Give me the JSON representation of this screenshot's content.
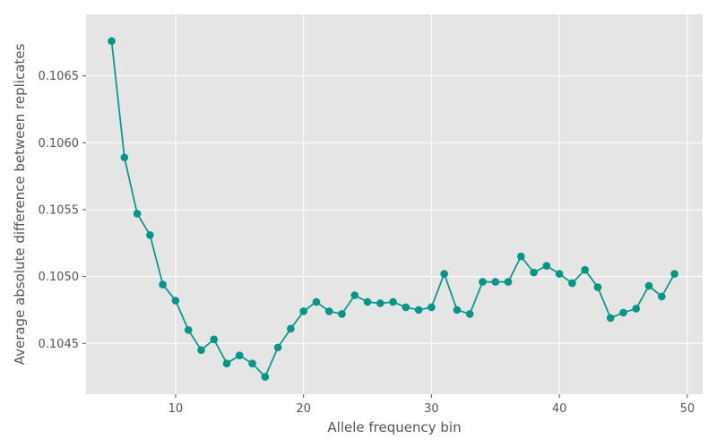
{
  "chart_data": {
    "type": "line",
    "title": "",
    "xlabel": "Allele frequency bin",
    "ylabel": "Average absolute difference between replicates",
    "xlim": [
      3,
      51.2
    ],
    "ylim": [
      0.10412,
      0.10696
    ],
    "xticks": [
      10,
      20,
      30,
      40,
      50
    ],
    "yticks": [
      0.1045,
      0.105,
      0.1055,
      0.106,
      0.1065
    ],
    "xtick_labels": [
      "10",
      "20",
      "30",
      "40",
      "50"
    ],
    "ytick_labels": [
      "0.1045",
      "0.1050",
      "0.1055",
      "0.1060",
      "0.1065"
    ],
    "grid": true,
    "background": "#e5e5e5",
    "grid_color": "#ffffff",
    "series": [
      {
        "color": "#009688",
        "marker": "circle",
        "x": [
          5,
          6,
          7,
          8,
          9,
          10,
          11,
          12,
          13,
          14,
          15,
          16,
          17,
          18,
          19,
          20,
          21,
          22,
          23,
          24,
          25,
          26,
          27,
          28,
          29,
          30,
          31,
          32,
          33,
          34,
          35,
          36,
          37,
          38,
          39,
          40,
          41,
          42,
          43,
          44,
          45,
          46,
          47,
          48,
          49
        ],
        "y": [
          0.10676,
          0.10589,
          0.10547,
          0.10531,
          0.10494,
          0.10482,
          0.1046,
          0.10445,
          0.10453,
          0.10435,
          0.10441,
          0.10435,
          0.10425,
          0.10447,
          0.10461,
          0.10474,
          0.10481,
          0.10474,
          0.10472,
          0.10486,
          0.10481,
          0.1048,
          0.10481,
          0.10477,
          0.10475,
          0.10477,
          0.10502,
          0.10475,
          0.10472,
          0.10496,
          0.10496,
          0.10496,
          0.10515,
          0.10503,
          0.10508,
          0.10502,
          0.10495,
          0.10505,
          0.10492,
          0.10469,
          0.10473,
          0.10476,
          0.10493,
          0.10485,
          0.10502
        ]
      }
    ]
  }
}
